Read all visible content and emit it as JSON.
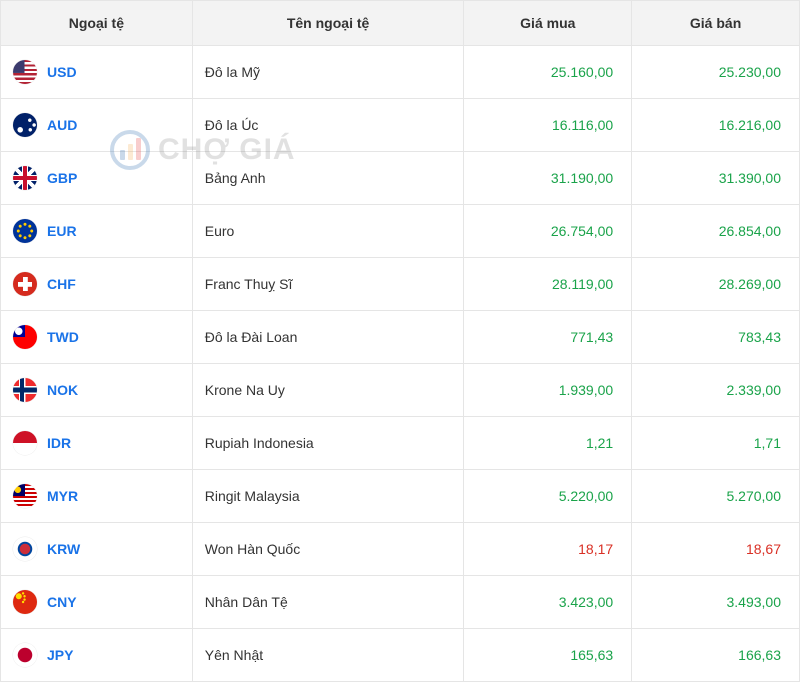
{
  "columns": {
    "currency": "Ngoại tệ",
    "name": "Tên ngoại tệ",
    "buy": "Giá mua",
    "sell": "Giá bán"
  },
  "watermark": "CHỢ GIÁ",
  "colors": {
    "link": "#1a73e8",
    "up": "#1aa34a",
    "down": "#d93025",
    "header_bg": "#f3f3f3",
    "border": "#e5e5e5"
  },
  "rows": [
    {
      "code": "USD",
      "name": "Đô la Mỹ",
      "buy": "25.160,00",
      "sell": "25.230,00",
      "buy_trend": "up",
      "sell_trend": "up"
    },
    {
      "code": "AUD",
      "name": "Đô la Úc",
      "buy": "16.116,00",
      "sell": "16.216,00",
      "buy_trend": "up",
      "sell_trend": "up"
    },
    {
      "code": "GBP",
      "name": "Bảng Anh",
      "buy": "31.190,00",
      "sell": "31.390,00",
      "buy_trend": "up",
      "sell_trend": "up"
    },
    {
      "code": "EUR",
      "name": "Euro",
      "buy": "26.754,00",
      "sell": "26.854,00",
      "buy_trend": "up",
      "sell_trend": "up"
    },
    {
      "code": "CHF",
      "name": "Franc Thuỵ Sĩ",
      "buy": "28.119,00",
      "sell": "28.269,00",
      "buy_trend": "up",
      "sell_trend": "up"
    },
    {
      "code": "TWD",
      "name": "Đô la Đài Loan",
      "buy": "771,43",
      "sell": "783,43",
      "buy_trend": "up",
      "sell_trend": "up"
    },
    {
      "code": "NOK",
      "name": "Krone Na Uy",
      "buy": "1.939,00",
      "sell": "2.339,00",
      "buy_trend": "up",
      "sell_trend": "up"
    },
    {
      "code": "IDR",
      "name": "Rupiah Indonesia",
      "buy": "1,21",
      "sell": "1,71",
      "buy_trend": "up",
      "sell_trend": "up"
    },
    {
      "code": "MYR",
      "name": "Ringit Malaysia",
      "buy": "5.220,00",
      "sell": "5.270,00",
      "buy_trend": "up",
      "sell_trend": "up"
    },
    {
      "code": "KRW",
      "name": "Won Hàn Quốc",
      "buy": "18,17",
      "sell": "18,67",
      "buy_trend": "down",
      "sell_trend": "down"
    },
    {
      "code": "CNY",
      "name": "Nhân Dân Tệ",
      "buy": "3.423,00",
      "sell": "3.493,00",
      "buy_trend": "up",
      "sell_trend": "up"
    },
    {
      "code": "JPY",
      "name": "Yên Nhật",
      "buy": "165,63",
      "sell": "166,63",
      "buy_trend": "up",
      "sell_trend": "up"
    }
  ]
}
